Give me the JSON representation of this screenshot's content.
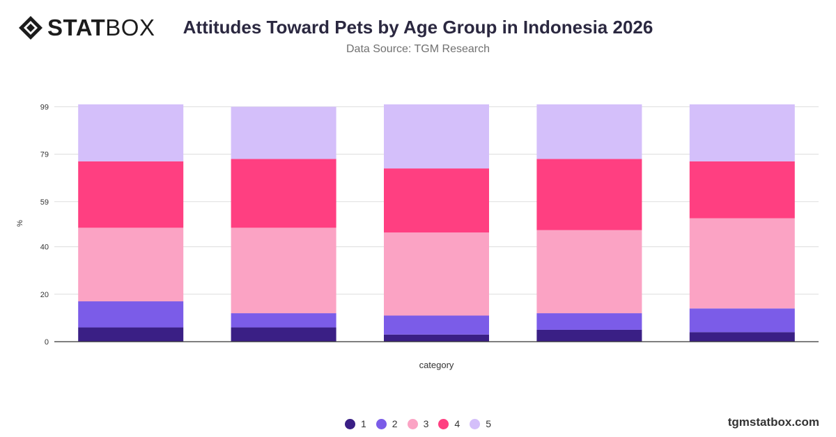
{
  "header": {
    "brand_bold": "STAT",
    "brand_light": "BOX",
    "title": "Attitudes Toward Pets by Age Group in Indonesia 2026",
    "subtitle": "Data Source: TGM Research"
  },
  "footer": {
    "site": "tgmstatbox.com"
  },
  "colors": {
    "series": [
      "#3a1f85",
      "#7b5ce8",
      "#fba3c4",
      "#ff3f81",
      "#d4bffa"
    ],
    "grid": "#dddddd",
    "axis": "#333333",
    "text": "#333333"
  },
  "chart_data": {
    "type": "bar",
    "stacked": true,
    "categories": [
      "",
      "",
      "",
      "",
      ""
    ],
    "xlabel": "category",
    "ylabel": "%",
    "yticks": [
      0,
      20,
      40,
      59,
      79,
      99
    ],
    "ylim": [
      0,
      100
    ],
    "grid": true,
    "legend_position": "bottom-center",
    "series": [
      {
        "name": "1",
        "values": [
          6,
          6,
          3,
          5,
          4
        ]
      },
      {
        "name": "2",
        "values": [
          11,
          6,
          8,
          7,
          10
        ]
      },
      {
        "name": "3",
        "values": [
          31,
          36,
          35,
          35,
          38
        ]
      },
      {
        "name": "4",
        "values": [
          28,
          29,
          27,
          30,
          24
        ]
      },
      {
        "name": "5",
        "values": [
          24,
          22,
          27,
          23,
          24
        ]
      }
    ]
  }
}
